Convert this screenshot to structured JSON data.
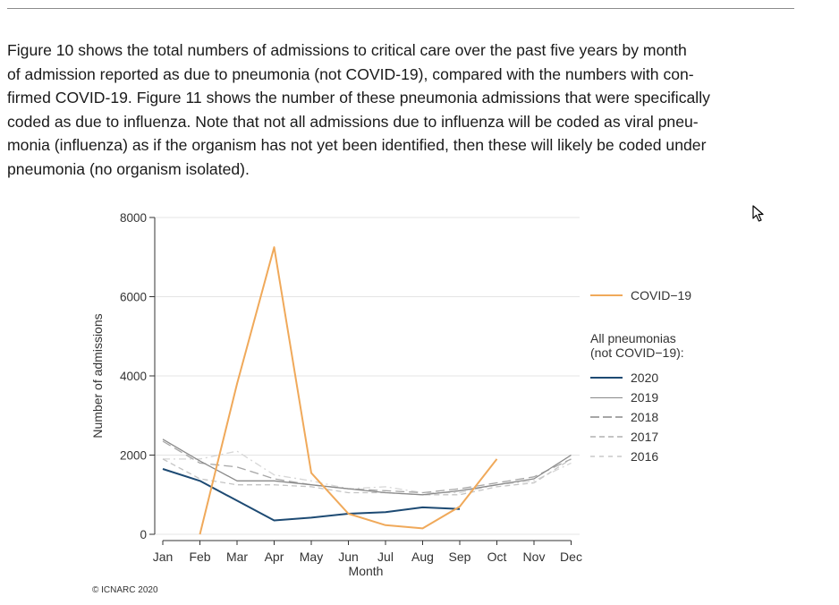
{
  "paragraph": {
    "lines": [
      "Figure 10 shows the total numbers of admissions to critical care over the past five years by month",
      "of admission reported as due to pneumonia (not COVID-19), compared with the numbers with con-",
      "firmed COVID-19. Figure 11 shows the number of these pneumonia admissions that were specifically",
      "coded as due to influenza. Note that not all admissions due to influenza will be coded as viral pneu-",
      "monia (influenza) as if the organism has not yet been identified, then these will likely be coded under",
      "pneumonia (no organism isolated)."
    ]
  },
  "legend": {
    "covid_label": "COVID−19",
    "group_heading_line1": "All pneumonias",
    "group_heading_line2": "(not COVID−19):"
  },
  "credit": "© ICNARC 2020",
  "colors": {
    "covid": "#f0a95a",
    "y2020": "#1d4a73",
    "y2019": "#8a8a8a",
    "y2018": "#a6a6a6",
    "y2017": "#c4c4c4",
    "y2016": "#d6d6d6"
  },
  "chart_data": {
    "type": "line",
    "xlabel": "Month",
    "ylabel": "Number of admissions",
    "categories": [
      "Jan",
      "Feb",
      "Mar",
      "Apr",
      "May",
      "Jun",
      "Jul",
      "Aug",
      "Sep",
      "Oct",
      "Nov",
      "Dec"
    ],
    "ylim": [
      0,
      8000
    ],
    "yticks": [
      0,
      2000,
      4000,
      6000,
      8000
    ],
    "grid": "horizontal",
    "legend_position": "right",
    "series": [
      {
        "name": "COVID−19",
        "style": "solid",
        "color_key": "covid",
        "width": 2,
        "values": [
          null,
          0,
          3800,
          7250,
          1550,
          520,
          230,
          150,
          700,
          1900,
          null,
          null
        ]
      },
      {
        "name": "2020",
        "style": "solid",
        "color_key": "y2020",
        "width": 2,
        "values": [
          1650,
          1350,
          850,
          350,
          420,
          520,
          560,
          680,
          640,
          null,
          null,
          null
        ]
      },
      {
        "name": "2019",
        "style": "solid",
        "color_key": "y2019",
        "width": 1.3,
        "values": [
          2400,
          1850,
          1350,
          1350,
          1250,
          1150,
          1050,
          1000,
          1100,
          1250,
          1400,
          2000
        ]
      },
      {
        "name": "2018",
        "style": "longdash",
        "color_key": "y2018",
        "width": 1.3,
        "values": [
          2350,
          1800,
          1700,
          1400,
          1250,
          1150,
          1100,
          1050,
          1150,
          1300,
          1450,
          1900
        ]
      },
      {
        "name": "2017",
        "style": "dash",
        "color_key": "y2017",
        "width": 1.3,
        "values": [
          1900,
          1400,
          1250,
          1250,
          1200,
          1050,
          1050,
          1000,
          1000,
          1200,
          1300,
          1900
        ]
      },
      {
        "name": "2016",
        "style": "dashdot",
        "color_key": "y2016",
        "width": 1.3,
        "values": [
          1900,
          1900,
          2100,
          1500,
          1350,
          1150,
          1200,
          1050,
          1050,
          1250,
          1350,
          1800
        ]
      }
    ]
  }
}
